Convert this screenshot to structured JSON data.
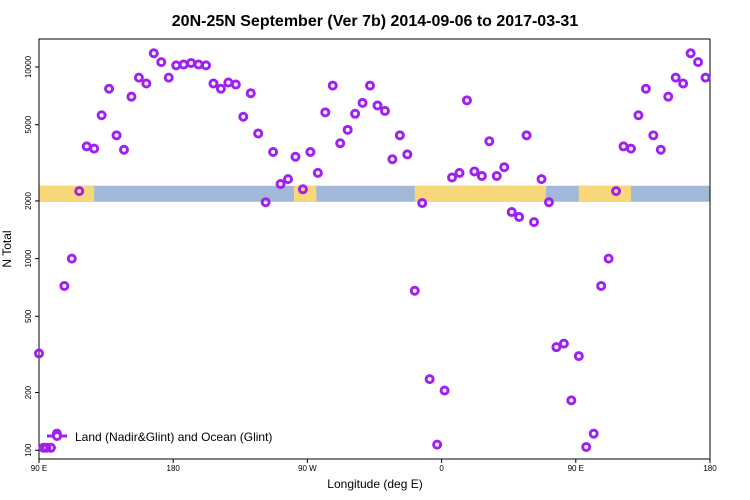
{
  "chart_data": {
    "type": "scatter",
    "title": "20N-25N September (Ver 7b)   2014-09-06 to 2017-03-31",
    "xlabel": "Longitude (deg E)",
    "ylabel": "N Total",
    "x_scale": "longitude wrapped, 90 E to 180 (via 180/90 W/0/90 E)",
    "y_scale": "log",
    "x_ticks": [
      "90 E",
      "180",
      "90 W",
      "0",
      "90 E",
      "180"
    ],
    "y_ticks": [
      100,
      200,
      500,
      1000,
      2000,
      5000,
      10000
    ],
    "y_tick_labels": [
      "100",
      "200",
      "500",
      "1000",
      "2000",
      "5000",
      "10000"
    ],
    "ylim": [
      90,
      14000
    ],
    "legend": {
      "position": "bottom-left",
      "label": "Land (Nadir&Glint) and Ocean (Glint)"
    },
    "series": [
      {
        "name": "Land (Nadir&Glint) and Ocean (Glint)",
        "color": "#a020f0",
        "points": [
          {
            "x": 0,
            "y": 320
          },
          {
            "x": 3,
            "y": 103
          },
          {
            "x": 5,
            "y": 103
          },
          {
            "x": 8,
            "y": 103
          },
          {
            "x": 12,
            "y": 122
          },
          {
            "x": 17,
            "y": 720
          },
          {
            "x": 22,
            "y": 1000
          },
          {
            "x": 27,
            "y": 2250
          },
          {
            "x": 32,
            "y": 3850
          },
          {
            "x": 37,
            "y": 3750
          },
          {
            "x": 42,
            "y": 5600
          },
          {
            "x": 47,
            "y": 7700
          },
          {
            "x": 52,
            "y": 4400
          },
          {
            "x": 57,
            "y": 3700
          },
          {
            "x": 62,
            "y": 7000
          },
          {
            "x": 67,
            "y": 8800
          },
          {
            "x": 72,
            "y": 8200
          },
          {
            "x": 77,
            "y": 11800
          },
          {
            "x": 82,
            "y": 10600
          },
          {
            "x": 87,
            "y": 8800
          },
          {
            "x": 92,
            "y": 10200
          },
          {
            "x": 97,
            "y": 10300
          },
          {
            "x": 102,
            "y": 10500
          },
          {
            "x": 107,
            "y": 10300
          },
          {
            "x": 112,
            "y": 10200
          },
          {
            "x": 117,
            "y": 8200
          },
          {
            "x": 122,
            "y": 7700
          },
          {
            "x": 127,
            "y": 8300
          },
          {
            "x": 132,
            "y": 8100
          },
          {
            "x": 137,
            "y": 5500
          },
          {
            "x": 142,
            "y": 7300
          },
          {
            "x": 147,
            "y": 4500
          },
          {
            "x": 152,
            "y": 1970
          },
          {
            "x": 157,
            "y": 3600
          },
          {
            "x": 162,
            "y": 2450
          },
          {
            "x": 167,
            "y": 2600
          },
          {
            "x": 172,
            "y": 3400
          },
          {
            "x": 177,
            "y": 2300
          },
          {
            "x": 182,
            "y": 3600
          },
          {
            "x": 187,
            "y": 2800
          },
          {
            "x": 192,
            "y": 5800
          },
          {
            "x": 197,
            "y": 8000
          },
          {
            "x": 202,
            "y": 4000
          },
          {
            "x": 207,
            "y": 4700
          },
          {
            "x": 212,
            "y": 5700
          },
          {
            "x": 217,
            "y": 6500
          },
          {
            "x": 222,
            "y": 8000
          },
          {
            "x": 227,
            "y": 6300
          },
          {
            "x": 232,
            "y": 5900
          },
          {
            "x": 237,
            "y": 3300
          },
          {
            "x": 242,
            "y": 4400
          },
          {
            "x": 247,
            "y": 3500
          },
          {
            "x": 252,
            "y": 680
          },
          {
            "x": 257,
            "y": 1950
          },
          {
            "x": 262,
            "y": 235
          },
          {
            "x": 267,
            "y": 107
          },
          {
            "x": 272,
            "y": 205
          },
          {
            "x": 277,
            "y": 2650
          },
          {
            "x": 282,
            "y": 2800
          },
          {
            "x": 287,
            "y": 6700
          },
          {
            "x": 292,
            "y": 2850
          },
          {
            "x": 297,
            "y": 2700
          },
          {
            "x": 302,
            "y": 4100
          },
          {
            "x": 307,
            "y": 2700
          },
          {
            "x": 312,
            "y": 3000
          },
          {
            "x": 317,
            "y": 1750
          },
          {
            "x": 322,
            "y": 1650
          },
          {
            "x": 327,
            "y": 4400
          },
          {
            "x": 332,
            "y": 1550
          },
          {
            "x": 337,
            "y": 2600
          },
          {
            "x": 342,
            "y": 1970
          },
          {
            "x": 347,
            "y": 345
          },
          {
            "x": 352,
            "y": 360
          },
          {
            "x": 357,
            "y": 182
          },
          {
            "x": 362,
            "y": 310
          },
          {
            "x": 367,
            "y": 104
          },
          {
            "x": 372,
            "y": 122
          },
          {
            "x": 377,
            "y": 720
          },
          {
            "x": 382,
            "y": 1000
          },
          {
            "x": 387,
            "y": 2250
          },
          {
            "x": 392,
            "y": 3850
          },
          {
            "x": 397,
            "y": 3750
          },
          {
            "x": 402,
            "y": 5600
          },
          {
            "x": 407,
            "y": 7700
          },
          {
            "x": 412,
            "y": 4400
          },
          {
            "x": 417,
            "y": 3700
          },
          {
            "x": 422,
            "y": 7000
          },
          {
            "x": 427,
            "y": 8800
          },
          {
            "x": 432,
            "y": 8200
          },
          {
            "x": 437,
            "y": 11800
          },
          {
            "x": 442,
            "y": 10600
          },
          {
            "x": 447,
            "y": 8800
          }
        ]
      }
    ],
    "map_strip": {
      "ocean_color": "#a2b8d8",
      "land_color": "#f7d77a",
      "y_range": [
        1980,
        2400
      ],
      "land_segments": [
        [
          0,
          37
        ],
        [
          171,
          186
        ],
        [
          252,
          340
        ],
        [
          362,
          397
        ]
      ]
    }
  }
}
